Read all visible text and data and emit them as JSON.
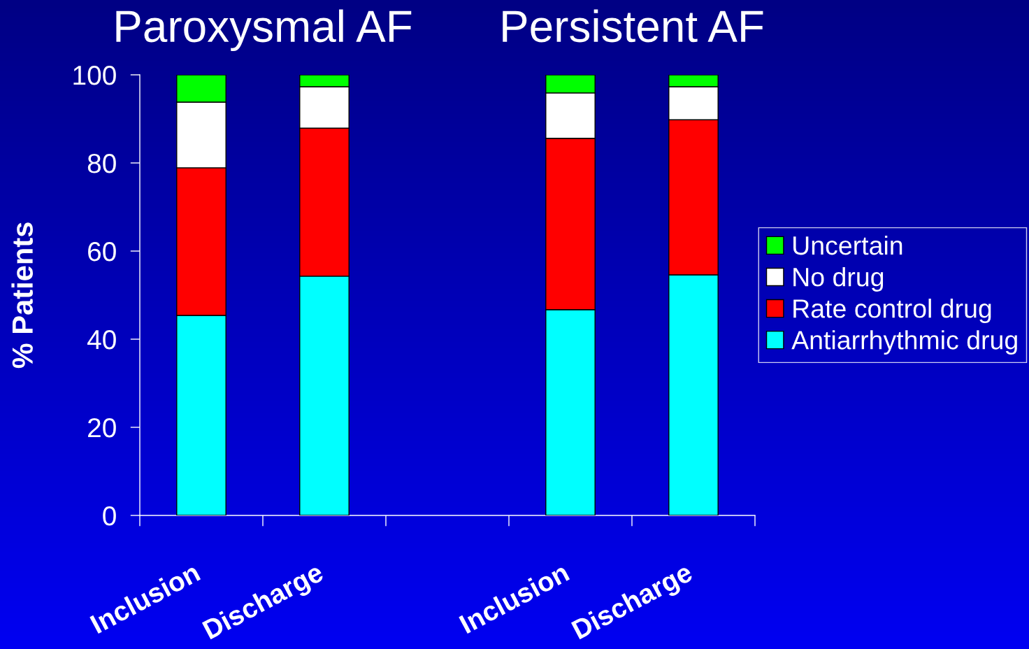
{
  "chart_data": {
    "type": "bar",
    "stacked": true,
    "categories": [
      "Inclusion",
      "Discharge",
      null,
      "Inclusion",
      "Discharge"
    ],
    "series": [
      {
        "name": "Antiarrhythmic drug",
        "color": "#00ffff",
        "values": [
          45.4,
          54.3,
          null,
          46.7,
          54.6
        ]
      },
      {
        "name": "Rate control drug",
        "color": "#ff0000",
        "values": [
          33.5,
          33.6,
          null,
          38.9,
          35.2
        ]
      },
      {
        "name": "No drug",
        "color": "#ffffff",
        "values": [
          14.9,
          9.4,
          null,
          10.3,
          7.5
        ]
      },
      {
        "name": "Uncertain",
        "color": "#00ff00",
        "values": [
          6.2,
          2.7,
          null,
          4.1,
          2.7
        ]
      }
    ],
    "ylabel": "% Patients",
    "ylim": [
      0,
      100
    ],
    "yticks": [
      0,
      20,
      40,
      60,
      80,
      100
    ],
    "annotations": [
      "Paroxysmal AF",
      "Persistent AF"
    ],
    "legend": "right",
    "grid": false
  }
}
